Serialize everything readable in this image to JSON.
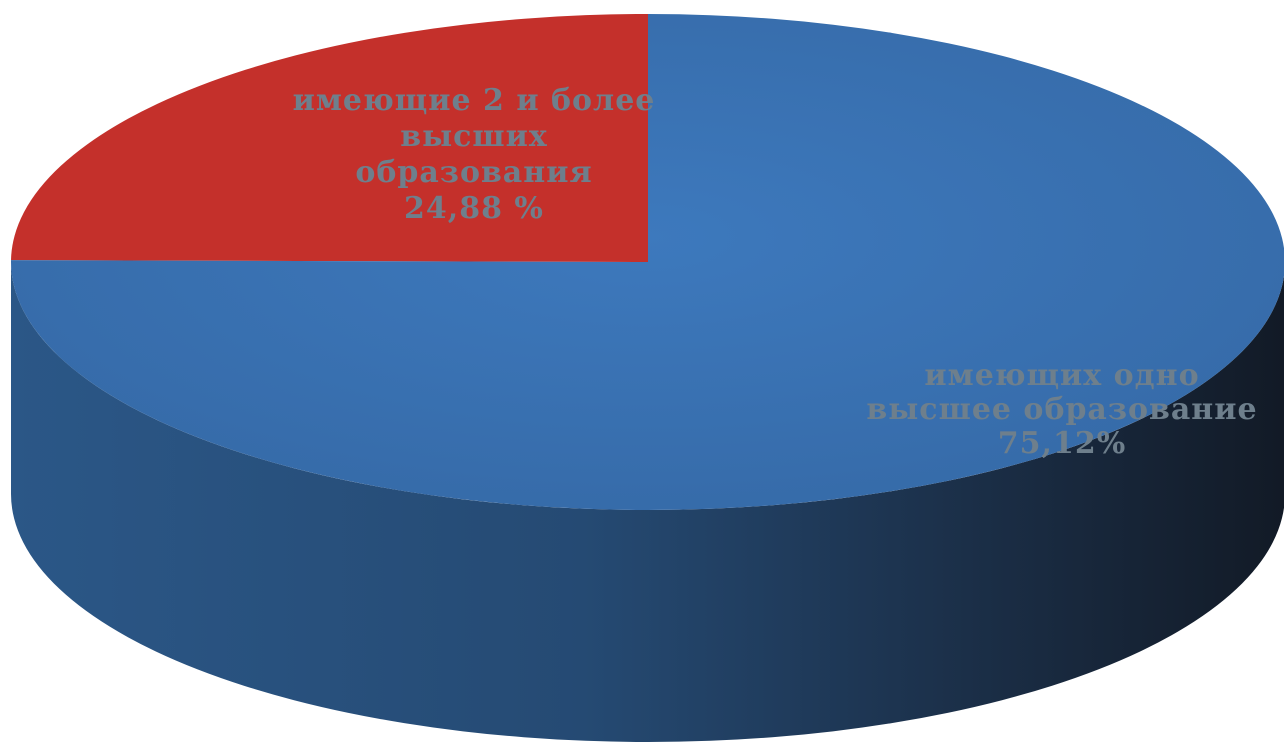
{
  "chart_data": {
    "type": "pie",
    "style": "3d",
    "title": "",
    "slices": [
      {
        "label_lines": [
          "имеющие 2 и более",
          "высших",
          "образования",
          "24,88 %"
        ],
        "value": 24.88,
        "color": "#c4302b"
      },
      {
        "label_lines": [
          "имеющих одно",
          "высшее образование",
          "75,12%"
        ],
        "value": 75.12,
        "color": "#3a74b6"
      }
    ]
  }
}
